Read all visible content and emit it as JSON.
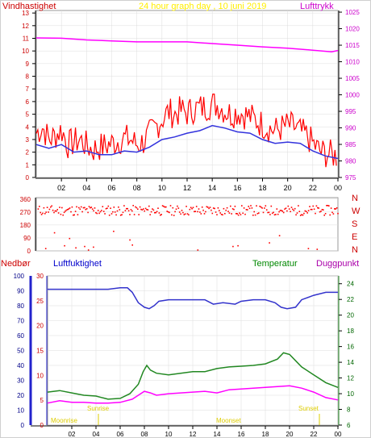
{
  "chart_data": [
    {
      "type": "line",
      "title": "24 hour graph day , 10 juni 2019",
      "left_axis_label": "Vindhastighet",
      "right_axis_label": "Lufttrykk",
      "x_tick_labels": [
        "02",
        "04",
        "06",
        "08",
        "10",
        "12",
        "14",
        "16",
        "18",
        "20",
        "22",
        "00"
      ],
      "left_ticks": [
        0,
        1,
        2,
        3,
        4,
        5,
        6,
        7,
        8,
        9,
        10,
        11,
        12,
        13
      ],
      "right_ticks": [
        975,
        980,
        985,
        990,
        995,
        1000,
        1005,
        1010,
        1015,
        1020,
        1025
      ],
      "left_range": [
        0,
        13.2
      ],
      "right_range": [
        975,
        1025.5
      ],
      "x_range_hours": [
        0,
        24
      ],
      "grid": true,
      "series": [
        {
          "name": "Lufttrykk",
          "axis": "right",
          "color": "#ff00ff",
          "points": [
            [
              0,
              1017.2
            ],
            [
              2,
              1017.1
            ],
            [
              4,
              1016.6
            ],
            [
              6,
              1016.3
            ],
            [
              8,
              1016.0
            ],
            [
              10,
              1016.0
            ],
            [
              12,
              1016.0
            ],
            [
              14,
              1015.5
            ],
            [
              16,
              1015.0
            ],
            [
              18,
              1014.5
            ],
            [
              20,
              1014.1
            ],
            [
              22,
              1013.5
            ],
            [
              23.5,
              1013.0
            ],
            [
              24,
              1013.4
            ]
          ]
        },
        {
          "axis": "left",
          "color": "#ff0000",
          "points": [
            [
              0,
              3.5
            ],
            [
              0.5,
              4.0
            ],
            [
              1,
              3.0
            ],
            [
              1.5,
              3.3
            ],
            [
              2,
              3.8
            ],
            [
              2.5,
              2.6
            ],
            [
              3,
              2.8
            ],
            [
              3.5,
              3.0
            ],
            [
              4,
              2.5
            ],
            [
              4.5,
              2.2
            ],
            [
              5,
              2.4
            ],
            [
              5.5,
              2.5
            ],
            [
              6,
              2.7
            ],
            [
              6.5,
              2.9
            ],
            [
              7,
              3.1
            ],
            [
              7.5,
              3.0
            ],
            [
              8,
              2.6
            ],
            [
              8.5,
              2.8
            ],
            [
              9,
              3.4
            ],
            [
              9.5,
              4.0
            ],
            [
              10,
              4.6
            ],
            [
              10.5,
              5.2
            ],
            [
              11,
              5.0
            ],
            [
              11.5,
              5.3
            ],
            [
              12,
              5.1
            ],
            [
              12.5,
              5.4
            ],
            [
              13,
              5.5
            ],
            [
              13.5,
              5.6
            ],
            [
              14,
              5.8
            ],
            [
              14.5,
              5.7
            ],
            [
              15,
              5.3
            ],
            [
              15.5,
              5.0
            ],
            [
              16,
              5.2
            ],
            [
              16.5,
              5.0
            ],
            [
              17,
              4.8
            ],
            [
              17.5,
              4.5
            ],
            [
              18,
              4.2
            ],
            [
              18.5,
              3.9
            ],
            [
              19,
              3.7
            ],
            [
              19.5,
              3.9
            ],
            [
              20,
              4.1
            ],
            [
              20.5,
              4.0
            ],
            [
              21,
              3.6
            ],
            [
              21.5,
              3.3
            ],
            [
              22,
              2.7
            ],
            [
              22.5,
              2.1
            ],
            [
              23,
              1.9
            ],
            [
              23.5,
              1.8
            ],
            [
              24,
              1.7
            ]
          ]
        },
        {
          "axis": "left",
          "color": "#3333dd",
          "points": [
            [
              0,
              2.6
            ],
            [
              1,
              2.3
            ],
            [
              2,
              2.6
            ],
            [
              3,
              2.0
            ],
            [
              4,
              2.1
            ],
            [
              5,
              1.8
            ],
            [
              6,
              1.8
            ],
            [
              7,
              2.1
            ],
            [
              8,
              2.0
            ],
            [
              9,
              2.4
            ],
            [
              10,
              3.0
            ],
            [
              11,
              3.2
            ],
            [
              12,
              3.5
            ],
            [
              13,
              3.7
            ],
            [
              14,
              4.1
            ],
            [
              15,
              3.9
            ],
            [
              16,
              3.6
            ],
            [
              17,
              3.5
            ],
            [
              18,
              3.0
            ],
            [
              19,
              2.7
            ],
            [
              20,
              2.8
            ],
            [
              21,
              2.7
            ],
            [
              22,
              2.1
            ],
            [
              23,
              1.7
            ],
            [
              24,
              1.5
            ]
          ]
        }
      ]
    },
    {
      "type": "scatter",
      "left_ticks": [
        0,
        90,
        180,
        270,
        360
      ],
      "left_tick_labels": [
        "0",
        "90",
        "180",
        "270",
        "360"
      ],
      "right_labels": [
        "N",
        "W",
        "S",
        "E",
        "N"
      ],
      "y_range": [
        0,
        370
      ],
      "x_range_hours": [
        0,
        24
      ],
      "color": "#ff0000",
      "band_center": 285,
      "outliers": [
        [
          0.7,
          20
        ],
        [
          1.4,
          130
        ],
        [
          2.2,
          40
        ],
        [
          2.6,
          90
        ],
        [
          3.1,
          25
        ],
        [
          3.8,
          35
        ],
        [
          4.1,
          10
        ],
        [
          4.5,
          30
        ],
        [
          6.1,
          140
        ],
        [
          7.4,
          80
        ],
        [
          7.6,
          45
        ],
        [
          12.8,
          10
        ],
        [
          15.6,
          35
        ],
        [
          16.0,
          40
        ],
        [
          18.5,
          60
        ],
        [
          19.3,
          110
        ],
        [
          21.6,
          20
        ],
        [
          22.3,
          15
        ]
      ]
    },
    {
      "type": "line",
      "axis_labels": {
        "nedbor": "Nedbør",
        "luftfuktighet": "Luftfuktighet",
        "temperatur": "Temperatur",
        "duggpunkt": "Duggpunkt"
      },
      "x_tick_labels": [
        "02",
        "04",
        "06",
        "08",
        "10",
        "12",
        "14",
        "16",
        "18",
        "20",
        "22",
        "00"
      ],
      "nedbor_ticks": [
        0,
        10,
        20,
        30,
        40,
        50,
        60,
        70,
        80,
        90,
        100
      ],
      "luftfuktighet_ticks": [
        0,
        5,
        10,
        15,
        20,
        25,
        30
      ],
      "temperatur_ticks": [
        6,
        8,
        10,
        12,
        14,
        16,
        18,
        20,
        22,
        24
      ],
      "temp_range": [
        6,
        25
      ],
      "x_range_hours": [
        0,
        24
      ],
      "grid": true,
      "annotations": [
        "Moonrise",
        "Sunrise",
        "Moonset",
        "Sunset"
      ],
      "series": [
        {
          "axis": "left",
          "color": "#3333cc",
          "points": [
            [
              0,
              91
            ],
            [
              2,
              91
            ],
            [
              4,
              91
            ],
            [
              5,
              91
            ],
            [
              6,
              92
            ],
            [
              6.6,
              92
            ],
            [
              7,
              89
            ],
            [
              7.5,
              82
            ],
            [
              8,
              79
            ],
            [
              8.4,
              78
            ],
            [
              8.8,
              80
            ],
            [
              9.2,
              83
            ],
            [
              10,
              84
            ],
            [
              11,
              84
            ],
            [
              12,
              84
            ],
            [
              13,
              84
            ],
            [
              13.7,
              81
            ],
            [
              14.5,
              82
            ],
            [
              15.5,
              81
            ],
            [
              16,
              83
            ],
            [
              17,
              84
            ],
            [
              18,
              84
            ],
            [
              18.8,
              82
            ],
            [
              19.3,
              79
            ],
            [
              19.8,
              78
            ],
            [
              20.5,
              79
            ],
            [
              21,
              84
            ],
            [
              22,
              87
            ],
            [
              23,
              89
            ],
            [
              24,
              89
            ]
          ]
        },
        {
          "name": "Temperatur",
          "axis": "right",
          "color": "#228822",
          "points": [
            [
              0,
              10.2
            ],
            [
              1,
              10.4
            ],
            [
              2,
              10.1
            ],
            [
              3,
              9.8
            ],
            [
              4,
              9.7
            ],
            [
              5,
              9.3
            ],
            [
              6,
              9.4
            ],
            [
              6.8,
              10.0
            ],
            [
              7.5,
              11.2
            ],
            [
              7.9,
              12.8
            ],
            [
              8.2,
              13.6
            ],
            [
              8.5,
              13.0
            ],
            [
              9,
              12.6
            ],
            [
              10,
              12.4
            ],
            [
              11,
              12.6
            ],
            [
              12,
              12.8
            ],
            [
              13,
              12.8
            ],
            [
              14,
              13.2
            ],
            [
              15,
              13.4
            ],
            [
              16,
              13.5
            ],
            [
              17,
              13.6
            ],
            [
              18,
              13.8
            ],
            [
              19,
              14.4
            ],
            [
              19.5,
              15.2
            ],
            [
              20,
              15.0
            ],
            [
              20.5,
              14.2
            ],
            [
              21,
              13.4
            ],
            [
              22,
              12.4
            ],
            [
              23,
              11.4
            ],
            [
              24,
              10.8
            ]
          ]
        },
        {
          "name": "Duggpunkt",
          "axis": "right",
          "color": "#ff00ff",
          "points": [
            [
              0,
              8.8
            ],
            [
              1,
              9.1
            ],
            [
              2,
              8.9
            ],
            [
              3,
              8.9
            ],
            [
              4,
              8.8
            ],
            [
              5,
              8.8
            ],
            [
              6,
              8.9
            ],
            [
              7,
              9.3
            ],
            [
              7.5,
              9.8
            ],
            [
              8,
              10.3
            ],
            [
              8.5,
              10.1
            ],
            [
              9,
              9.8
            ],
            [
              10,
              10.0
            ],
            [
              11,
              10.1
            ],
            [
              12,
              10.2
            ],
            [
              13,
              10.3
            ],
            [
              14,
              10.1
            ],
            [
              15,
              10.5
            ],
            [
              16,
              10.6
            ],
            [
              17,
              10.7
            ],
            [
              18,
              10.8
            ],
            [
              19,
              10.9
            ],
            [
              20,
              11.0
            ],
            [
              21,
              10.7
            ],
            [
              22,
              10.2
            ],
            [
              23,
              9.5
            ],
            [
              24,
              9.2
            ]
          ]
        }
      ]
    }
  ],
  "legend": {
    "moonrise": "Moonrise",
    "sunrise": "Sunrise",
    "moonset": "Moonset",
    "sunset": "Sunset"
  },
  "colors": {
    "background": "#ffffff",
    "gridline": "#dddddd",
    "wind_axis": "#cc0000",
    "pressure_axis": "#cc00cc",
    "title": "#ffee00",
    "nedbor_axis": "#cc0000",
    "fukt_axis": "#0000cc",
    "temp_axis": "#008800",
    "dug_axis": "#aa00aa",
    "annotation": "#ddcc00"
  }
}
